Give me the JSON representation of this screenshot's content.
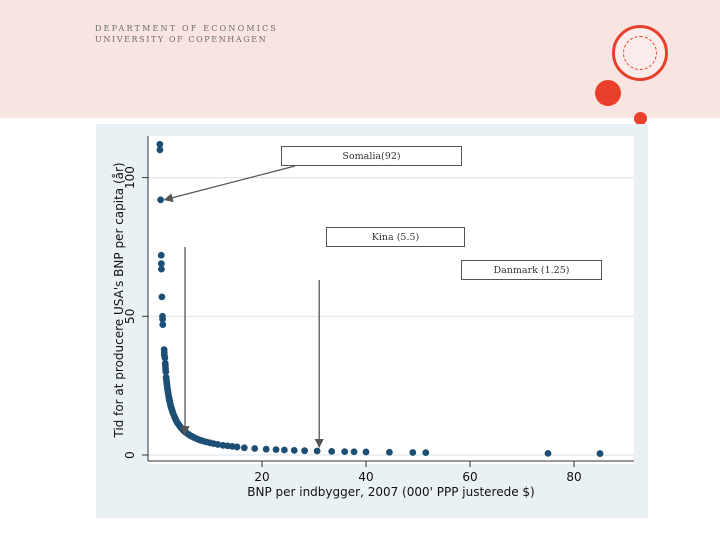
{
  "header": {
    "department": "DEPARTMENT OF ECONOMICS",
    "university": "UNIVERSITY OF COPENHAGEN",
    "accent_color": "#e8402b",
    "band_color": "#f8e5e2"
  },
  "annotations": [
    {
      "label": "Somalia(92)",
      "x": 0.5,
      "y": 92
    },
    {
      "label": "Kina (5.5)",
      "x": 5.2,
      "y": 6
    },
    {
      "label": "Danmark (1.25)",
      "x": 31,
      "y": 1.4
    }
  ],
  "chart_data": {
    "type": "scatter",
    "title": "",
    "xlabel": "BNP per indbygger, 2007 (000' PPP justerede $)",
    "ylabel": "Tid for at producere USA's BNP per capita (år)",
    "xscale": "linear",
    "xlim": [
      0,
      90
    ],
    "ylim": [
      0,
      115
    ],
    "xticks": [
      20,
      40,
      60,
      80
    ],
    "yticks": [
      0,
      50,
      100
    ],
    "grid": true,
    "marker_color": "#1d4f75",
    "x": [
      0.35,
      0.37,
      0.5,
      0.62,
      0.64,
      0.66,
      0.75,
      0.86,
      0.88,
      0.92,
      1.18,
      1.2,
      1.22,
      1.32,
      1.4,
      1.43,
      1.46,
      1.5,
      1.56,
      1.62,
      1.67,
      1.72,
      1.78,
      1.85,
      1.93,
      2.0,
      2.08,
      2.13,
      2.17,
      2.21,
      2.26,
      2.33,
      2.42,
      2.52,
      2.63,
      2.73,
      2.85,
      3.0,
      3.23,
      3.3,
      3.45,
      3.65,
      3.84,
      4.01,
      4.23,
      4.4,
      4.6,
      4.85,
      5.06,
      5.2,
      5.36,
      5.73,
      6.0,
      6.29,
      6.55,
      6.9,
      7.3,
      7.75,
      8.2,
      8.73,
      9.32,
      10.0,
      10.7,
      11.5,
      12.5,
      13.4,
      14.3,
      15.2,
      16.6,
      18.6,
      20.8,
      22.7,
      24.3,
      26.2,
      28.2,
      30.6,
      33.4,
      35.9,
      37.7,
      40.0,
      44.5,
      49.0,
      51.5,
      75.0,
      85.0
    ],
    "y": [
      112,
      110,
      92,
      72,
      69,
      67,
      57,
      50,
      49,
      47,
      38,
      37,
      36,
      35,
      33,
      32,
      31,
      30,
      28,
      27,
      26.3,
      25.4,
      24.5,
      23.5,
      22.6,
      21.8,
      20.9,
      20.4,
      20.1,
      19.6,
      19.2,
      18.6,
      17.9,
      17.2,
      16.6,
      16.0,
      15.3,
      14.5,
      13.6,
      13.2,
      12.6,
      11.9,
      11.3,
      10.9,
      10.3,
      9.9,
      9.5,
      9.0,
      8.6,
      8.4,
      8.1,
      7.6,
      7.3,
      6.9,
      6.7,
      6.3,
      6.0,
      5.6,
      5.3,
      5.0,
      4.7,
      4.4,
      4.1,
      3.8,
      3.5,
      3.3,
      3.1,
      2.9,
      2.6,
      2.35,
      2.1,
      1.93,
      1.8,
      1.67,
      1.55,
      1.43,
      1.31,
      1.22,
      1.16,
      1.1,
      0.98,
      0.89,
      0.85,
      0.58,
      0.51
    ]
  }
}
